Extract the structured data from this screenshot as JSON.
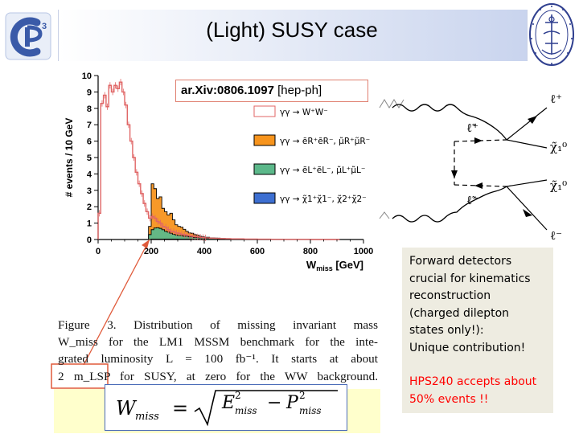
{
  "slide": {
    "title": "(Light) SUSY case",
    "colors": {
      "title_gradient_end": "#c9d4ee",
      "info_box": "#eeece1",
      "highlight": "#ff0000",
      "formula_background": "#ffffcc",
      "logo_blue": "#3a5aa8"
    }
  },
  "reference": {
    "arxiv_bold": "ar.Xiv:0806.1097",
    "arxiv_rest": " [hep-ph]"
  },
  "logos": {
    "left_logo_icon": "cp3-logo-icon",
    "right_seal_icon": "university-seal-icon"
  },
  "chart_data": {
    "type": "bar",
    "xlabel": "W",
    "xlabel_sub": "miss",
    "xlabel_unit": "[GeV]",
    "ylabel": "# events / 10 GeV",
    "xlim": [
      0,
      1000
    ],
    "ylim": [
      0,
      10
    ],
    "xticks": [
      "0",
      "200",
      "400",
      "600",
      "800",
      "1000"
    ],
    "yticks": [
      "0",
      "1",
      "2",
      "3",
      "4",
      "5",
      "6",
      "7",
      "8",
      "9",
      "10"
    ],
    "legend": [
      "γγ → W⁺W⁻",
      "γγ → ẽR⁺ẽR⁻, μ̃R⁺μ̃R⁻",
      "γγ → ẽL⁺ẽL⁻, μ̃L⁺μ̃L⁻",
      "γγ → χ̃1⁺χ̃1⁻, χ̃2⁺χ̃2⁻"
    ],
    "bin_width": 10,
    "series": [
      {
        "key": "ww",
        "color": "#e06666",
        "style": "step",
        "x": [
          0,
          10,
          20,
          30,
          40,
          50,
          60,
          70,
          80,
          90,
          100,
          110,
          120,
          130,
          140,
          150,
          160,
          170,
          180,
          190,
          200,
          210,
          220,
          230,
          240,
          250,
          260,
          270,
          280,
          290,
          300,
          310,
          320,
          330,
          340,
          350,
          360,
          370,
          380,
          390,
          400,
          420,
          440,
          460,
          480,
          500,
          550,
          600,
          650,
          700,
          800,
          900
        ],
        "values": [
          1.6,
          8.3,
          8.8,
          8.1,
          9.4,
          9.0,
          9.4,
          9.2,
          9.6,
          9.0,
          8.2,
          7.0,
          6.0,
          5.0,
          4.1,
          3.4,
          2.8,
          2.2,
          1.7,
          1.3,
          1.4,
          1.3,
          1.1,
          1.0,
          0.8,
          0.75,
          0.6,
          0.5,
          0.48,
          0.4,
          0.38,
          0.33,
          0.3,
          0.26,
          0.24,
          0.2,
          0.18,
          0.16,
          0.14,
          0.12,
          0.1,
          0.08,
          0.07,
          0.06,
          0.05,
          0.04,
          0.03,
          0.02,
          0.01,
          0.01,
          0.0,
          0.0
        ]
      },
      {
        "key": "eR",
        "color": "#f7941d",
        "style": "fill",
        "x": [
          190,
          200,
          210,
          220,
          230,
          240,
          250,
          260,
          270,
          280,
          290,
          300,
          310,
          320,
          330,
          340,
          350,
          360,
          370,
          380,
          390,
          400,
          420,
          440,
          460,
          480,
          500,
          550,
          600,
          650,
          700
        ],
        "values": [
          0.8,
          3.4,
          3.1,
          2.5,
          2.6,
          1.9,
          1.7,
          1.5,
          1.6,
          1.2,
          0.9,
          0.8,
          0.75,
          0.62,
          0.5,
          0.4,
          0.38,
          0.3,
          0.26,
          0.2,
          0.17,
          0.14,
          0.1,
          0.08,
          0.06,
          0.05,
          0.03,
          0.02,
          0.01,
          0.01,
          0.0
        ]
      },
      {
        "key": "eL",
        "color": "#5cb88a",
        "style": "fill",
        "x": [
          190,
          200,
          210,
          220,
          230,
          240,
          250,
          260,
          270,
          280,
          290,
          300,
          320,
          340,
          360,
          380,
          400,
          450,
          500,
          600,
          700
        ],
        "values": [
          0.3,
          0.6,
          0.7,
          0.72,
          0.68,
          0.6,
          0.5,
          0.45,
          0.38,
          0.32,
          0.28,
          0.24,
          0.2,
          0.16,
          0.12,
          0.1,
          0.08,
          0.05,
          0.03,
          0.01,
          0.0
        ]
      },
      {
        "key": "chi",
        "color": "#3d6fd1",
        "style": "fill",
        "x": [
          200,
          250,
          300,
          350,
          400,
          500,
          600
        ],
        "values": [
          0.02,
          0.03,
          0.02,
          0.02,
          0.01,
          0.01,
          0.0
        ]
      }
    ]
  },
  "feynman": {
    "labels": [
      "ℓ⁺",
      "ℓ̃⁺",
      "χ̃₁⁰",
      "χ̃₁⁰",
      "ℓ̃⁻",
      "ℓ⁻"
    ]
  },
  "caption": {
    "lines": [
      "Figure 3.   Distribution of missing invariant mass",
      "W_miss for the LM1 MSSM benchmark for the inte-",
      "grated luminosity L = 100 fb⁻¹.  It starts at about",
      "2 m_LSP for SUSY, at zero for the WW background."
    ]
  },
  "formula": {
    "lhs": "W",
    "lhs_sub": "miss",
    "eq": "=",
    "e_sym": "E",
    "e_sub": "miss",
    "p_sym": "P",
    "p_sub": "miss",
    "minus": "−",
    "sup": "2"
  },
  "info": {
    "description": "Forward detectors\ncrucial for kinematics\nreconstruction\n(charged dilepton\nstates only!):\nUnique contribution!",
    "highlight": "HPS240  accepts about\n50% events !!"
  }
}
